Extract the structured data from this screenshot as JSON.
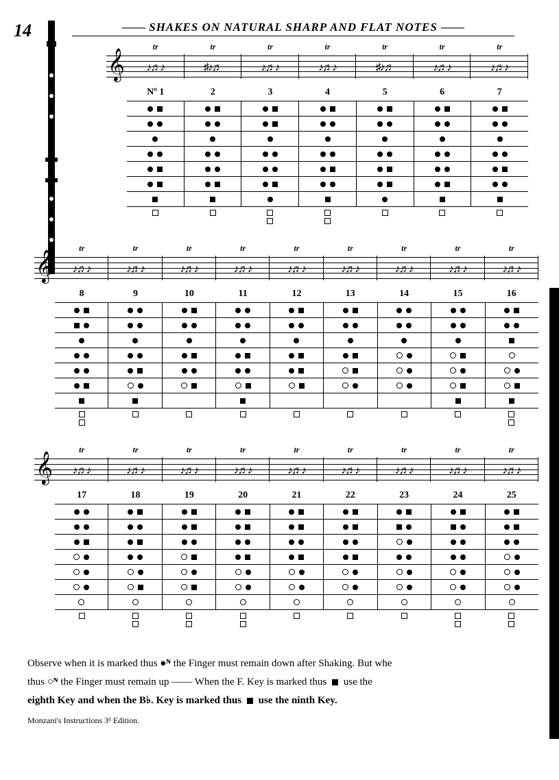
{
  "page_number": "14",
  "title": "SHAKES ON NATURAL SHARP AND FLAT NOTES",
  "trill_mark": "tr",
  "rows": [
    {
      "offset_class": "first",
      "columns": [
        {
          "num": "Nº 1",
          "notes": "♪♬♪"
        },
        {
          "num": "2",
          "notes": "♯♪♬"
        },
        {
          "num": "3",
          "notes": "♪♬♪"
        },
        {
          "num": "4",
          "notes": "♪♬♪"
        },
        {
          "num": "5",
          "notes": "♯♪♬"
        },
        {
          "num": "6",
          "notes": "♪♬♪"
        },
        {
          "num": "7",
          "notes": "♪♬♪"
        }
      ],
      "fingering_lines": 7,
      "patterns": [
        [
          [
            "c",
            "s"
          ],
          [
            "c",
            "s"
          ],
          [
            "c",
            "s"
          ],
          [
            "c",
            "s"
          ],
          [
            "c",
            "s"
          ],
          [
            "c",
            "s"
          ],
          [
            "c",
            "s"
          ]
        ],
        [
          [
            "c",
            "c"
          ],
          [
            "c",
            "c"
          ],
          [
            "c",
            "s"
          ],
          [
            "c",
            "c"
          ],
          [
            "c",
            "c"
          ],
          [
            "c",
            "c"
          ],
          [
            "c",
            "c"
          ]
        ],
        [
          [
            "c"
          ],
          [
            "c"
          ],
          [
            "c"
          ],
          [
            "c"
          ],
          [
            "c"
          ],
          [
            "c"
          ],
          [
            "c"
          ]
        ],
        [
          [
            "c",
            "c"
          ],
          [
            "c",
            "c"
          ],
          [
            "c",
            "c"
          ],
          [
            "c",
            "c"
          ],
          [
            "c",
            "c"
          ],
          [
            "c",
            "c"
          ],
          [
            "c",
            "c"
          ]
        ],
        [
          [
            "c",
            "s"
          ],
          [
            "c",
            "c"
          ],
          [
            "c",
            "c"
          ],
          [
            "c",
            "s"
          ],
          [
            "c",
            "s"
          ],
          [
            "c",
            "c"
          ],
          [
            "c",
            "s"
          ]
        ],
        [
          [
            "c",
            "s"
          ],
          [
            "c",
            "s"
          ],
          [
            "c",
            "s"
          ],
          [
            "c",
            "c"
          ],
          [
            "c",
            "s"
          ],
          [
            "c",
            "s"
          ],
          [
            "c",
            "c"
          ]
        ],
        [
          [
            "s"
          ],
          [
            "s"
          ],
          [
            "c"
          ],
          [
            "s"
          ],
          [
            "c"
          ],
          [
            "s"
          ],
          [
            "s"
          ]
        ]
      ],
      "keys": [
        [
          [
            "so"
          ],
          [
            "so"
          ],
          [
            "so",
            "so"
          ],
          [
            "so",
            "so"
          ],
          [
            "so"
          ],
          [
            "so"
          ],
          [
            "so"
          ]
        ]
      ]
    },
    {
      "offset_class": "rest",
      "columns": [
        {
          "num": "8",
          "notes": "♪♬♪"
        },
        {
          "num": "9",
          "notes": "♪♬♪"
        },
        {
          "num": "10",
          "notes": "♪♬♪"
        },
        {
          "num": "11",
          "notes": "♪♬♪"
        },
        {
          "num": "12",
          "notes": "♪♬♪"
        },
        {
          "num": "13",
          "notes": "♪♬♪"
        },
        {
          "num": "14",
          "notes": "♪♬♪"
        },
        {
          "num": "15",
          "notes": "♪♬♪"
        },
        {
          "num": "16",
          "notes": "♪♬♪"
        }
      ],
      "fingering_lines": 7,
      "patterns": [
        [
          [
            "c",
            "s"
          ],
          [
            "c",
            "c"
          ],
          [
            "c",
            "s"
          ],
          [
            "c",
            "c"
          ],
          [
            "c",
            "s"
          ],
          [
            "c",
            "s"
          ],
          [
            "c",
            "c"
          ],
          [
            "c",
            "c"
          ],
          [
            "c",
            "s"
          ]
        ],
        [
          [
            "s",
            "c"
          ],
          [
            "c",
            "c"
          ],
          [
            "c",
            "c"
          ],
          [
            "c",
            "c"
          ],
          [
            "c",
            "c"
          ],
          [
            "c",
            "c"
          ],
          [
            "c",
            "c"
          ],
          [
            "c",
            "c"
          ],
          [
            "c",
            "c"
          ]
        ],
        [
          [
            "c"
          ],
          [
            "c"
          ],
          [
            "c"
          ],
          [
            "c"
          ],
          [
            "c"
          ],
          [
            "c"
          ],
          [
            "c"
          ],
          [
            "c"
          ],
          [
            "s"
          ]
        ],
        [
          [
            "c",
            "c"
          ],
          [
            "c",
            "c"
          ],
          [
            "c",
            "s"
          ],
          [
            "c",
            "s"
          ],
          [
            "c",
            "s"
          ],
          [
            "c",
            "s"
          ],
          [
            "o",
            "c"
          ],
          [
            "o",
            "s"
          ],
          [
            "o"
          ]
        ],
        [
          [
            "c",
            "c"
          ],
          [
            "c",
            "s"
          ],
          [
            "c",
            "c"
          ],
          [
            "c",
            "c"
          ],
          [
            "c",
            "s"
          ],
          [
            "o",
            "s"
          ],
          [
            "o",
            "c"
          ],
          [
            "o",
            "c"
          ],
          [
            "o",
            "c"
          ]
        ],
        [
          [
            "c",
            "s"
          ],
          [
            "o",
            "c"
          ],
          [
            "o",
            "s"
          ],
          [
            "o",
            "s"
          ],
          [
            "o",
            "s"
          ],
          [
            "o",
            "c"
          ],
          [
            "o",
            "c"
          ],
          [
            "o",
            "s"
          ],
          [
            "o",
            "s"
          ]
        ],
        [
          [
            "s"
          ],
          [
            "s"
          ],
          [],
          [
            "s"
          ],
          [],
          [],
          [],
          [
            "s"
          ],
          [
            "s"
          ]
        ]
      ],
      "keys": [
        [
          [
            "so",
            "so"
          ],
          [
            "so"
          ],
          [
            "so"
          ],
          [
            "so"
          ],
          [
            "so"
          ],
          [
            "so"
          ],
          [
            "so"
          ],
          [
            "so"
          ],
          [
            "so",
            "so"
          ]
        ]
      ]
    },
    {
      "offset_class": "rest",
      "columns": [
        {
          "num": "17",
          "notes": "♪♬♪"
        },
        {
          "num": "18",
          "notes": "♪♬♪"
        },
        {
          "num": "19",
          "notes": "♪♬♪"
        },
        {
          "num": "20",
          "notes": "♪♬♪"
        },
        {
          "num": "21",
          "notes": "♪♬♪"
        },
        {
          "num": "22",
          "notes": "♪♬♪"
        },
        {
          "num": "23",
          "notes": "♪♬♪"
        },
        {
          "num": "24",
          "notes": "♪♬♪"
        },
        {
          "num": "25",
          "notes": "♪♬♪"
        }
      ],
      "fingering_lines": 7,
      "patterns": [
        [
          [
            "c",
            "c"
          ],
          [
            "c",
            "s"
          ],
          [
            "c",
            "s"
          ],
          [
            "c",
            "s"
          ],
          [
            "c",
            "s"
          ],
          [
            "c",
            "s"
          ],
          [
            "c",
            "s"
          ],
          [
            "c",
            "s"
          ],
          [
            "c",
            "s"
          ]
        ],
        [
          [
            "c",
            "c"
          ],
          [
            "c",
            "c"
          ],
          [
            "c",
            "s"
          ],
          [
            "c",
            "s"
          ],
          [
            "c",
            "s"
          ],
          [
            "c",
            "s"
          ],
          [
            "s",
            "c"
          ],
          [
            "s",
            "c"
          ],
          [
            "c",
            "s"
          ]
        ],
        [
          [
            "c",
            "s"
          ],
          [
            "c",
            "s"
          ],
          [
            "c",
            "c"
          ],
          [
            "c",
            "c"
          ],
          [
            "c",
            "c"
          ],
          [
            "c",
            "c"
          ],
          [
            "o",
            "c"
          ],
          [
            "c",
            "c"
          ],
          [
            "c",
            "c"
          ]
        ],
        [
          [
            "o",
            "c"
          ],
          [
            "c",
            "c"
          ],
          [
            "o",
            "s"
          ],
          [
            "c",
            "s"
          ],
          [
            "c",
            "s"
          ],
          [
            "c",
            "s"
          ],
          [
            "c",
            "c"
          ],
          [
            "c",
            "c"
          ],
          [
            "o",
            "c"
          ]
        ],
        [
          [
            "o",
            "c"
          ],
          [
            "o",
            "c"
          ],
          [
            "o",
            "c"
          ],
          [
            "o",
            "c"
          ],
          [
            "o",
            "c"
          ],
          [
            "o",
            "c"
          ],
          [
            "o",
            "c"
          ],
          [
            "o",
            "c"
          ],
          [
            "o",
            "c"
          ]
        ],
        [
          [
            "o",
            "c"
          ],
          [
            "o",
            "s"
          ],
          [
            "o",
            "s"
          ],
          [
            "o",
            "c"
          ],
          [
            "o",
            "c"
          ],
          [
            "o",
            "c"
          ],
          [
            "o",
            "c"
          ],
          [
            "o",
            "c"
          ],
          [
            "o",
            "c"
          ]
        ],
        [
          [
            "o"
          ],
          [
            "o"
          ],
          [
            "o"
          ],
          [
            "o"
          ],
          [
            "o"
          ],
          [
            "o"
          ],
          [
            "o"
          ],
          [
            "o"
          ],
          [
            "o"
          ]
        ]
      ],
      "keys": [
        [
          [
            "so"
          ],
          [
            "so",
            "so"
          ],
          [
            "so",
            "so"
          ],
          [
            "so",
            "so"
          ],
          [
            "so"
          ],
          [
            "so"
          ],
          [
            "so"
          ],
          [
            "so",
            "so"
          ],
          [
            "so",
            "so"
          ]
        ]
      ]
    }
  ],
  "footer": {
    "line1_a": "Observe when it is marked thus ",
    "line1_b": " the Finger must remain down after Shaking. But whe",
    "line2_a": "thus ",
    "line2_b": " the Finger must remain up ——   When the F. Key is marked thus ",
    "line2_c": " use the",
    "line3_a": "eighth Key and when the B♭. Key is marked thus ",
    "line3_b": " use the ninth Key.",
    "mark_down": "●ᴺ",
    "mark_up": "○ᴺ"
  },
  "edition": "Monzani's Instructions 3ᵈ Edition.",
  "hole_map": {
    "c": "closed",
    "o": "open",
    "s": "sq-closed",
    "so": "sq-open"
  }
}
